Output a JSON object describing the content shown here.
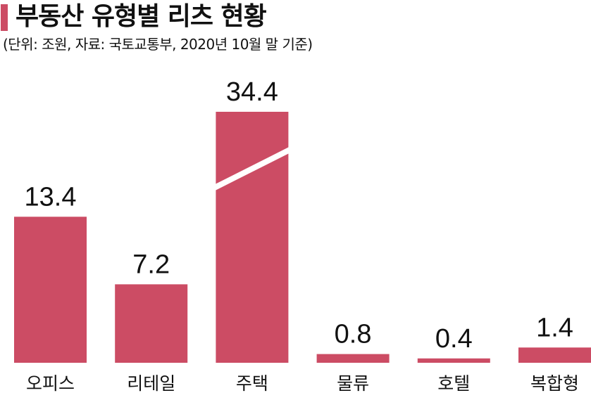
{
  "chart_data": {
    "type": "bar",
    "title": "부동산 유형별 리츠 현황",
    "subtitle": "(단위: 조원, 자료: 국토교통부, 2020년 10월 말 기준)",
    "categories": [
      "오피스",
      "리테일",
      "주택",
      "물류",
      "호텔",
      "복합형"
    ],
    "values": [
      13.4,
      7.2,
      34.4,
      0.8,
      0.4,
      1.4
    ],
    "value_labels": [
      "13.4",
      "7.2",
      "34.4",
      "0.8",
      "0.4",
      "1.4"
    ],
    "xlabel": "",
    "ylabel": "",
    "axis_break_on": "주택",
    "grid": false,
    "legend": "none",
    "colors": {
      "bar": "#cc4c64",
      "accent": "#cc4c64",
      "text": "#111111",
      "break_line": "#ffffff"
    }
  }
}
